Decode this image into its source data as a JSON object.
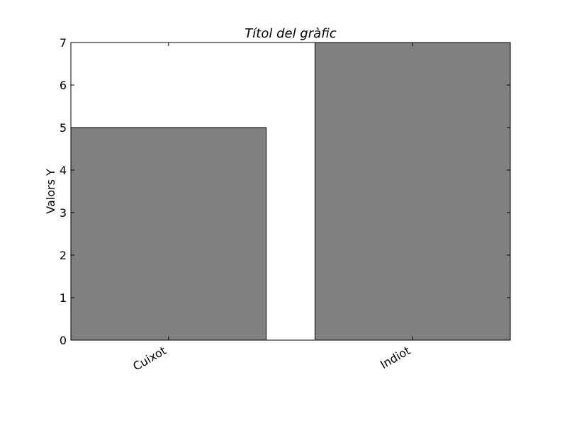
{
  "chart_data": {
    "type": "bar",
    "title": "Títol del gràfic",
    "xlabel": "",
    "ylabel": "Valors Y",
    "categories": [
      "Cuixot",
      "Indiot"
    ],
    "values": [
      5,
      7
    ],
    "ylim": [
      0,
      7
    ],
    "yticks": [
      0,
      1,
      2,
      3,
      4,
      5,
      6,
      7
    ],
    "xtick_rotation": 30,
    "grid": false,
    "legend": "none",
    "colors": {
      "bar_fill": "#808080",
      "bar_edge": "#000000",
      "axes": "#000000"
    }
  }
}
